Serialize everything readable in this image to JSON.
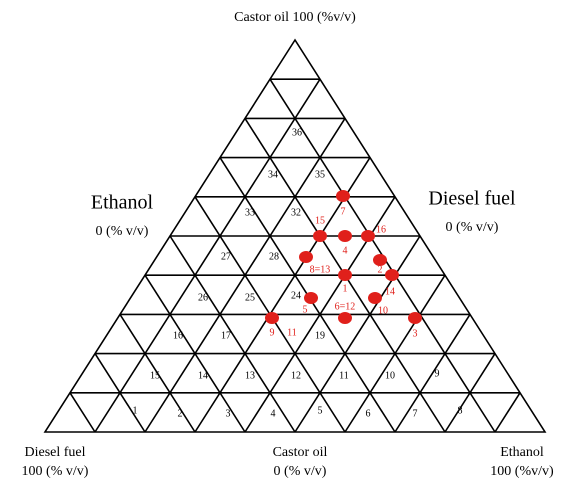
{
  "title": "Castor oil 100 (%v/v)",
  "left_label": {
    "name": "Ethanol",
    "value": "0 (% v/v)"
  },
  "right_label": {
    "name": "Diesel fuel",
    "value": "0 (% v/v)"
  },
  "bottom_left": {
    "name": "Diesel fuel",
    "value": "100 (% v/v)"
  },
  "bottom_center": {
    "name": "Castor oil",
    "value": "0 (% v/v)"
  },
  "bottom_right": {
    "name": "Ethanol",
    "value": "100 (%v/v)"
  },
  "region_labels": [
    "36",
    "34",
    "35",
    "33",
    "32",
    "27",
    "28",
    "26",
    "25",
    "24",
    "16",
    "17",
    "19",
    "15",
    "14",
    "13",
    "12",
    "11",
    "10",
    "9",
    "1",
    "2",
    "3",
    "4",
    "5",
    "6",
    "7",
    "8"
  ],
  "points": [
    "7",
    "15",
    "4",
    "16",
    "8=13",
    "1",
    "2",
    "14",
    "5",
    "10",
    "6=12",
    "9",
    "11",
    "3"
  ]
}
